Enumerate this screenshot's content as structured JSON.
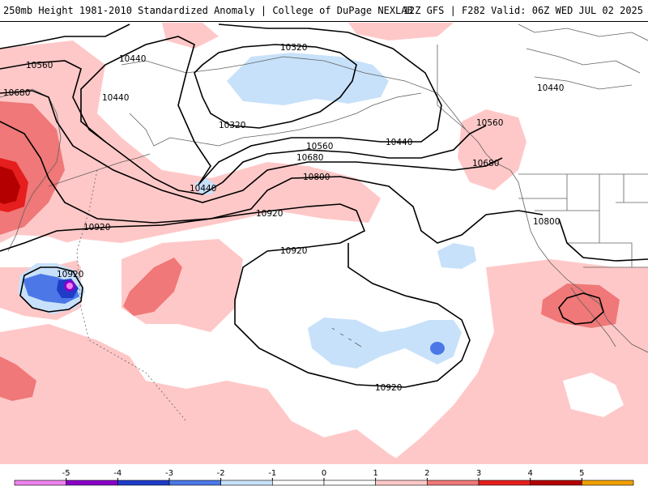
{
  "header": {
    "title": "250mb Height 1981-2010 Standardized Anomaly | College of DuPage NEXLAB",
    "run_info": "12Z GFS | F282 Valid: 06Z WED JUL 02 2025"
  },
  "colors": {
    "neg5": "#ee82ee",
    "neg4": "#8a00c8",
    "neg3": "#1e3cc8",
    "neg2": "#4b78e6",
    "neg1": "#c8e1fa",
    "zero": "#ffffff",
    "pos1": "#ffc8c8",
    "pos2": "#f07878",
    "pos3": "#e61e1e",
    "pos4": "#b40000",
    "pos5": "#f0a000",
    "contour": "#000000",
    "geo": "#606060"
  },
  "contour_labels": [
    "10440",
    "10320",
    "10560",
    "10680",
    "10440",
    "10320",
    "10440",
    "10560",
    "10680",
    "10800",
    "10920",
    "10440",
    "10920",
    "10920",
    "10920",
    "10560",
    "10680",
    "10440",
    "10800"
  ],
  "legend": {
    "labels": [
      "-5",
      "-4",
      "-3",
      "-2",
      "-1",
      "0",
      "1",
      "2",
      "3",
      "4",
      "5"
    ]
  }
}
